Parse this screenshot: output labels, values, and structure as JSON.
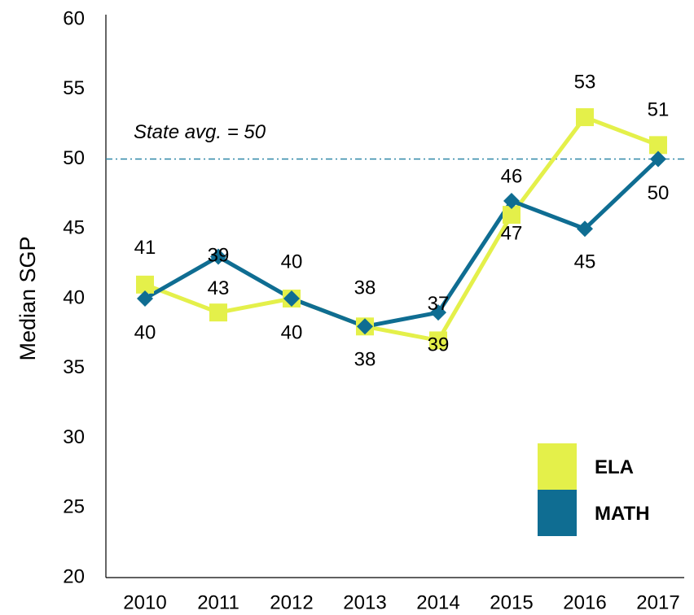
{
  "chart_data": {
    "type": "line",
    "y_label": "Median SGP",
    "categories": [
      "2010",
      "2011",
      "2012",
      "2013",
      "2014",
      "2015",
      "2016",
      "2017"
    ],
    "series": [
      {
        "name": "ELA",
        "color": "#e4f04a",
        "values": [
          41,
          39,
          40,
          38,
          37,
          46,
          53,
          51
        ]
      },
      {
        "name": "MATH",
        "color": "#0f6d92",
        "values": [
          40,
          43,
          40,
          38,
          39,
          47,
          45,
          50
        ]
      }
    ],
    "reference_line": {
      "value": 50,
      "label": "State avg. = 50",
      "color": "#2f87a8"
    },
    "ylim": [
      20,
      60
    ],
    "yticks": [
      20,
      25,
      30,
      35,
      40,
      45,
      50,
      55,
      60
    ],
    "grid": false,
    "legend": "lower right"
  }
}
